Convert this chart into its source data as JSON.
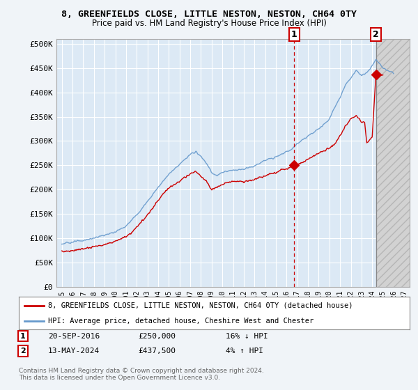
{
  "title_line1": "8, GREENFIELDS CLOSE, LITTLE NESTON, NESTON, CH64 0TY",
  "title_line2": "Price paid vs. HM Land Registry's House Price Index (HPI)",
  "legend_label_red": "8, GREENFIELDS CLOSE, LITTLE NESTON, NESTON, CH64 0TY (detached house)",
  "legend_label_blue": "HPI: Average price, detached house, Cheshire West and Chester",
  "annotation1_date": "20-SEP-2016",
  "annotation1_price": "£250,000",
  "annotation1_hpi": "16% ↓ HPI",
  "annotation2_date": "13-MAY-2024",
  "annotation2_price": "£437,500",
  "annotation2_hpi": "4% ↑ HPI",
  "footnote": "Contains HM Land Registry data © Crown copyright and database right 2024.\nThis data is licensed under the Open Government Licence v3.0.",
  "red_color": "#cc0000",
  "blue_color": "#6699cc",
  "plot_bg_color": "#dce9f5",
  "grid_color": "#ffffff",
  "sale1_x": 2016.72,
  "sale1_y": 250000,
  "sale2_x": 2024.36,
  "sale2_y": 437500,
  "ylim_min": 0,
  "ylim_max": 510000,
  "xlim_min": 1994.5,
  "xlim_max": 2027.5,
  "yticks": [
    0,
    50000,
    100000,
    150000,
    200000,
    250000,
    300000,
    350000,
    400000,
    450000,
    500000
  ],
  "ytick_labels": [
    "£0",
    "£50K",
    "£100K",
    "£150K",
    "£200K",
    "£250K",
    "£300K",
    "£350K",
    "£400K",
    "£450K",
    "£500K"
  ],
  "xticks": [
    1995,
    1996,
    1997,
    1998,
    1999,
    2000,
    2001,
    2002,
    2003,
    2004,
    2005,
    2006,
    2007,
    2008,
    2009,
    2010,
    2011,
    2012,
    2013,
    2014,
    2015,
    2016,
    2017,
    2018,
    2019,
    2020,
    2021,
    2022,
    2023,
    2024,
    2025,
    2026,
    2027
  ]
}
